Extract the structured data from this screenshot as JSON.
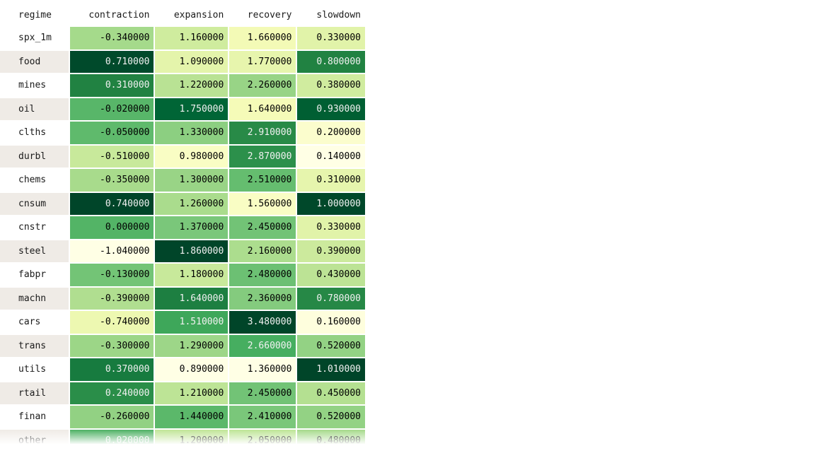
{
  "table": {
    "index_header": "regime",
    "columns": [
      "contraction",
      "expansion",
      "recovery",
      "slowdown"
    ],
    "rows": [
      {
        "label": "spx_1m",
        "values": [
          "-0.340000",
          "1.160000",
          "1.660000",
          "0.330000"
        ],
        "num": [
          -0.34,
          1.16,
          1.66,
          0.33
        ]
      },
      {
        "label": "food",
        "values": [
          "0.710000",
          "1.090000",
          "1.770000",
          "0.800000"
        ],
        "num": [
          0.71,
          1.09,
          1.77,
          0.8
        ]
      },
      {
        "label": "mines",
        "values": [
          "0.310000",
          "1.220000",
          "2.260000",
          "0.380000"
        ],
        "num": [
          0.31,
          1.22,
          2.26,
          0.38
        ]
      },
      {
        "label": "oil",
        "values": [
          "-0.020000",
          "1.750000",
          "1.640000",
          "0.930000"
        ],
        "num": [
          -0.02,
          1.75,
          1.64,
          0.93
        ]
      },
      {
        "label": "clths",
        "values": [
          "-0.050000",
          "1.330000",
          "2.910000",
          "0.200000"
        ],
        "num": [
          -0.05,
          1.33,
          2.91,
          0.2
        ]
      },
      {
        "label": "durbl",
        "values": [
          "-0.510000",
          "0.980000",
          "2.870000",
          "0.140000"
        ],
        "num": [
          -0.51,
          0.98,
          2.87,
          0.14
        ]
      },
      {
        "label": "chems",
        "values": [
          "-0.350000",
          "1.300000",
          "2.510000",
          "0.310000"
        ],
        "num": [
          -0.35,
          1.3,
          2.51,
          0.31
        ]
      },
      {
        "label": "cnsum",
        "values": [
          "0.740000",
          "1.260000",
          "1.560000",
          "1.000000"
        ],
        "num": [
          0.74,
          1.26,
          1.56,
          1.0
        ]
      },
      {
        "label": "cnstr",
        "values": [
          "0.000000",
          "1.370000",
          "2.450000",
          "0.330000"
        ],
        "num": [
          0.0,
          1.37,
          2.45,
          0.33
        ]
      },
      {
        "label": "steel",
        "values": [
          "-1.040000",
          "1.860000",
          "2.160000",
          "0.390000"
        ],
        "num": [
          -1.04,
          1.86,
          2.16,
          0.39
        ]
      },
      {
        "label": "fabpr",
        "values": [
          "-0.130000",
          "1.180000",
          "2.480000",
          "0.430000"
        ],
        "num": [
          -0.13,
          1.18,
          2.48,
          0.43
        ]
      },
      {
        "label": "machn",
        "values": [
          "-0.390000",
          "1.640000",
          "2.360000",
          "0.780000"
        ],
        "num": [
          -0.39,
          1.64,
          2.36,
          0.78
        ]
      },
      {
        "label": "cars",
        "values": [
          "-0.740000",
          "1.510000",
          "3.480000",
          "0.160000"
        ],
        "num": [
          -0.74,
          1.51,
          3.48,
          0.16
        ]
      },
      {
        "label": "trans",
        "values": [
          "-0.300000",
          "1.290000",
          "2.660000",
          "0.520000"
        ],
        "num": [
          -0.3,
          1.29,
          2.66,
          0.52
        ]
      },
      {
        "label": "utils",
        "values": [
          "0.370000",
          "0.890000",
          "1.360000",
          "1.010000"
        ],
        "num": [
          0.37,
          0.89,
          1.36,
          1.01
        ]
      },
      {
        "label": "rtail",
        "values": [
          "0.240000",
          "1.210000",
          "2.450000",
          "0.450000"
        ],
        "num": [
          0.24,
          1.21,
          2.45,
          0.45
        ]
      },
      {
        "label": "finan",
        "values": [
          "-0.260000",
          "1.440000",
          "2.410000",
          "0.520000"
        ],
        "num": [
          -0.26,
          1.44,
          2.41,
          0.52
        ]
      },
      {
        "label": "other",
        "values": [
          "0.020000",
          "1.200000",
          "2.050000",
          "0.480000"
        ],
        "num": [
          0.02,
          1.2,
          2.05,
          0.48
        ]
      }
    ]
  },
  "colormap": {
    "name": "YlGn",
    "stops": [
      "#ffffe5",
      "#f7fcb9",
      "#d9f0a3",
      "#addd8e",
      "#78c679",
      "#41ab5d",
      "#238443",
      "#006837",
      "#004529"
    ]
  }
}
